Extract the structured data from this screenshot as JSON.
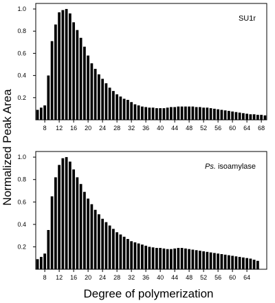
{
  "figure": {
    "ylabel": "Normalized Peak Area",
    "xlabel": "Degree of polymerization"
  },
  "chart_data": [
    {
      "type": "bar",
      "label_prefix": "",
      "label_main": "SU1r",
      "xlabel": "Degree of polymerization",
      "ylabel": "Normalized Peak Area",
      "xlim": [
        5.5,
        69.5
      ],
      "ylim": [
        0,
        1.05
      ],
      "x_ticks": [
        8,
        12,
        16,
        20,
        24,
        28,
        32,
        36,
        40,
        44,
        48,
        52,
        56,
        60,
        64,
        68
      ],
      "y_ticks": [
        0.2,
        0.4,
        0.6,
        0.8,
        1.0
      ],
      "y_tick_labels": [
        "0.2",
        "0.4",
        "0.6",
        "0.8",
        "1.0"
      ],
      "grid": false,
      "x": [
        6,
        7,
        8,
        9,
        10,
        11,
        12,
        13,
        14,
        15,
        16,
        17,
        18,
        19,
        20,
        21,
        22,
        23,
        24,
        25,
        26,
        27,
        28,
        29,
        30,
        31,
        32,
        33,
        34,
        35,
        36,
        37,
        38,
        39,
        40,
        41,
        42,
        43,
        44,
        45,
        46,
        47,
        48,
        49,
        50,
        51,
        52,
        53,
        54,
        55,
        56,
        57,
        58,
        59,
        60,
        61,
        62,
        63,
        64,
        65,
        66,
        67,
        68,
        69
      ],
      "values": [
        0.09,
        0.11,
        0.13,
        0.4,
        0.71,
        0.86,
        0.97,
        0.99,
        1.0,
        0.96,
        0.88,
        0.81,
        0.74,
        0.66,
        0.58,
        0.51,
        0.46,
        0.41,
        0.37,
        0.33,
        0.29,
        0.26,
        0.23,
        0.21,
        0.19,
        0.18,
        0.16,
        0.14,
        0.13,
        0.12,
        0.115,
        0.11,
        0.11,
        0.105,
        0.105,
        0.105,
        0.11,
        0.115,
        0.115,
        0.12,
        0.12,
        0.12,
        0.12,
        0.12,
        0.115,
        0.115,
        0.11,
        0.11,
        0.105,
        0.1,
        0.095,
        0.09,
        0.085,
        0.08,
        0.075,
        0.07,
        0.065,
        0.06,
        0.055,
        0.05,
        0.05,
        0.045,
        0.045,
        0.04
      ]
    },
    {
      "type": "bar",
      "label_prefix": "Ps.",
      "label_main": " isoamylase",
      "xlabel": "Degree of polymerization",
      "ylabel": "Normalized Peak Area",
      "xlim": [
        5.5,
        69.5
      ],
      "ylim": [
        0,
        1.05
      ],
      "x_ticks": [
        8,
        12,
        16,
        20,
        24,
        28,
        32,
        36,
        40,
        44,
        48,
        52,
        56,
        60,
        64
      ],
      "y_ticks": [
        0.2,
        0.4,
        0.6,
        0.8,
        1.0
      ],
      "y_tick_labels": [
        "0.2",
        "0.4",
        "0.6",
        "0.8",
        "1.0"
      ],
      "grid": false,
      "x": [
        6,
        7,
        8,
        9,
        10,
        11,
        12,
        13,
        14,
        15,
        16,
        17,
        18,
        19,
        20,
        21,
        22,
        23,
        24,
        25,
        26,
        27,
        28,
        29,
        30,
        31,
        32,
        33,
        34,
        35,
        36,
        37,
        38,
        39,
        40,
        41,
        42,
        43,
        44,
        45,
        46,
        47,
        48,
        49,
        50,
        51,
        52,
        53,
        54,
        55,
        56,
        57,
        58,
        59,
        60,
        61,
        62,
        63,
        64,
        65,
        66,
        67
      ],
      "values": [
        0.09,
        0.11,
        0.14,
        0.35,
        0.65,
        0.82,
        0.93,
        0.99,
        1.0,
        0.96,
        0.89,
        0.82,
        0.76,
        0.69,
        0.63,
        0.58,
        0.53,
        0.49,
        0.45,
        0.42,
        0.39,
        0.36,
        0.33,
        0.31,
        0.29,
        0.27,
        0.25,
        0.24,
        0.23,
        0.22,
        0.21,
        0.2,
        0.195,
        0.19,
        0.19,
        0.185,
        0.18,
        0.18,
        0.185,
        0.19,
        0.19,
        0.185,
        0.18,
        0.175,
        0.17,
        0.165,
        0.16,
        0.155,
        0.15,
        0.145,
        0.14,
        0.135,
        0.13,
        0.125,
        0.12,
        0.115,
        0.11,
        0.105,
        0.1,
        0.095,
        0.085,
        0.075
      ]
    }
  ]
}
